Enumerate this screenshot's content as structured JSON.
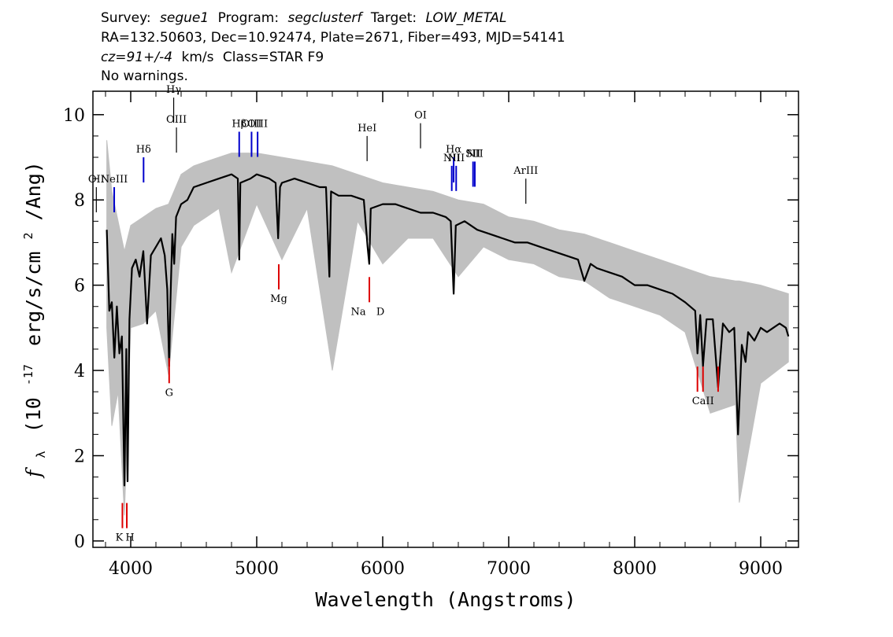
{
  "header": {
    "survey_label": "Survey:",
    "survey": "segue1",
    "program_label": "Program:",
    "program": "segclusterf",
    "target_label": "Target:",
    "target": "LOW_METAL",
    "line2": "RA=132.50603, Dec=10.92474, Plate=2671, Fiber=493, MJD=54141",
    "cz": "cz=91+/-4",
    "cz_units": "km/s",
    "class_text": "Class=STAR F9",
    "warnings": "No warnings."
  },
  "chart_data": {
    "type": "line",
    "xlabel": "Wavelength (Angstroms)",
    "ylabel_prefix": "f",
    "ylabel_sub": "λ",
    "ylabel_main": "(10",
    "ylabel_exp": "-17",
    "ylabel_units": "erg/s/cm",
    "ylabel_sq": "2",
    "ylabel_end": "/Ang)",
    "xlim": [
      3700,
      9300
    ],
    "ylim": [
      -0.15,
      10.55
    ],
    "xticks": [
      4000,
      5000,
      6000,
      7000,
      8000,
      9000
    ],
    "yticks": [
      0,
      2,
      4,
      6,
      8,
      10
    ],
    "series": [
      {
        "role": "flux",
        "color": "#000000",
        "x": [
          3810,
          3830,
          3850,
          3870,
          3890,
          3910,
          3930,
          3950,
          3965,
          3975,
          3990,
          4010,
          4040,
          4070,
          4100,
          4130,
          4160,
          4200,
          4240,
          4270,
          4290,
          4305,
          4315,
          4330,
          4345,
          4360,
          4400,
          4450,
          4500,
          4600,
          4700,
          4800,
          4850,
          4861,
          4870,
          4950,
          5000,
          5100,
          5150,
          5170,
          5185,
          5200,
          5300,
          5400,
          5500,
          5550,
          5577,
          5590,
          5650,
          5750,
          5850,
          5880,
          5893,
          5905,
          6000,
          6100,
          6200,
          6300,
          6400,
          6500,
          6540,
          6563,
          6580,
          6650,
          6750,
          6850,
          6950,
          7050,
          7150,
          7250,
          7350,
          7450,
          7550,
          7600,
          7650,
          7700,
          7800,
          7900,
          8000,
          8100,
          8200,
          8300,
          8400,
          8480,
          8498,
          8520,
          8542,
          8570,
          8620,
          8662,
          8700,
          8750,
          8790,
          8820,
          8850,
          8880,
          8900,
          8950,
          9000,
          9050,
          9100,
          9150,
          9200,
          9220
        ],
        "y": [
          7.3,
          5.4,
          5.6,
          4.3,
          5.5,
          4.4,
          4.8,
          1.3,
          4.5,
          1.4,
          5.2,
          6.4,
          6.6,
          6.2,
          6.8,
          5.1,
          6.7,
          6.9,
          7.1,
          6.7,
          5.9,
          4.1,
          5.6,
          7.2,
          6.5,
          7.6,
          7.9,
          8.0,
          8.3,
          8.4,
          8.5,
          8.6,
          8.5,
          6.6,
          8.4,
          8.5,
          8.6,
          8.5,
          8.4,
          7.1,
          8.3,
          8.4,
          8.5,
          8.4,
          8.3,
          8.3,
          6.2,
          8.2,
          8.1,
          8.1,
          8.0,
          6.9,
          6.5,
          7.8,
          7.9,
          7.9,
          7.8,
          7.7,
          7.7,
          7.6,
          7.5,
          5.8,
          7.4,
          7.5,
          7.3,
          7.2,
          7.1,
          7.0,
          7.0,
          6.9,
          6.8,
          6.7,
          6.6,
          6.1,
          6.5,
          6.4,
          6.3,
          6.2,
          6.0,
          6.0,
          5.9,
          5.8,
          5.6,
          5.4,
          4.4,
          5.3,
          4.1,
          5.2,
          5.2,
          3.6,
          5.1,
          4.9,
          5.0,
          2.5,
          4.6,
          4.2,
          4.9,
          4.7,
          5.0,
          4.9,
          5.0,
          5.1,
          5.0,
          4.8
        ]
      },
      {
        "role": "noise",
        "color": "#c0c0c0",
        "x": [
          3810,
          3850,
          3900,
          3950,
          4000,
          4100,
          4200,
          4300,
          4400,
          4500,
          4600,
          4700,
          4800,
          5000,
          5200,
          5400,
          5600,
          5800,
          6000,
          6200,
          6400,
          6600,
          6800,
          7000,
          7200,
          7400,
          7600,
          7800,
          8000,
          8200,
          8400,
          8600,
          8800,
          8830,
          9000,
          9220
        ],
        "hi": [
          9.4,
          8.2,
          7.5,
          6.8,
          7.4,
          7.6,
          7.8,
          7.9,
          8.6,
          8.8,
          8.9,
          9.0,
          9.1,
          9.1,
          9.0,
          8.9,
          8.8,
          8.6,
          8.4,
          8.3,
          8.2,
          8.0,
          7.9,
          7.6,
          7.5,
          7.3,
          7.2,
          7.0,
          6.8,
          6.6,
          6.4,
          6.2,
          6.1,
          6.1,
          6.0,
          5.8
        ],
        "lo": [
          5.0,
          2.7,
          3.5,
          0.6,
          5.0,
          5.1,
          5.4,
          3.9,
          6.9,
          7.4,
          7.6,
          7.8,
          6.3,
          7.9,
          6.6,
          7.8,
          4.0,
          7.5,
          6.5,
          7.1,
          7.1,
          6.2,
          6.9,
          6.6,
          6.5,
          6.2,
          6.1,
          5.7,
          5.5,
          5.3,
          4.9,
          3.0,
          3.2,
          0.9,
          3.7,
          4.2
        ]
      }
    ],
    "emission_lines": [
      {
        "label": "OII",
        "x": 3727,
        "y": 8.3
      },
      {
        "label": "NeIII",
        "x": 3869,
        "y": 8.3
      },
      {
        "label": "Hδ",
        "x": 4102,
        "y": 9.0
      },
      {
        "label": "Hγ",
        "x": 4341,
        "y": 10.4
      },
      {
        "label": "OIII",
        "x": 4363,
        "y": 9.7
      },
      {
        "label": "Hβ",
        "x": 4861,
        "y": 9.6
      },
      {
        "label": "OIII",
        "x": 4959,
        "y": 9.6
      },
      {
        "label": "OIII",
        "x": 5007,
        "y": 9.6
      },
      {
        "label": "HeI",
        "x": 5876,
        "y": 9.5
      },
      {
        "label": "OI",
        "x": 6300,
        "y": 9.8
      },
      {
        "label": "NII",
        "x": 6548,
        "y": 8.8
      },
      {
        "label": "Hα",
        "x": 6563,
        "y": 9.0
      },
      {
        "label": "NII",
        "x": 6583,
        "y": 8.8
      },
      {
        "label": "SII",
        "x": 6717,
        "y": 8.9
      },
      {
        "label": "NII",
        "x": 6731,
        "y": 8.9
      },
      {
        "label": "ArIII",
        "x": 7136,
        "y": 8.5
      }
    ],
    "absorption_lines": [
      {
        "label": "K",
        "x": 3934,
        "y": 0.3
      },
      {
        "label": "H",
        "x": 3969,
        "y": 0.3
      },
      {
        "label": "G",
        "x": 4305,
        "y": 3.7
      },
      {
        "label": "Mg",
        "x": 5175,
        "y": 5.9
      },
      {
        "label": "Na",
        "x": 5894,
        "y": 5.6
      },
      {
        "label": "D",
        "x": 5894,
        "y": 5.6
      },
      {
        "label": "CaII",
        "x": 8498,
        "y": 3.5
      },
      {
        "label": "CaII",
        "x": 8542,
        "y": 3.5
      },
      {
        "label": "CaII",
        "x": 8662,
        "y": 3.5
      }
    ],
    "colors": {
      "emission_blue": "#0000cc",
      "emission_black": "#000000",
      "absorption_red": "#dd0000"
    }
  }
}
